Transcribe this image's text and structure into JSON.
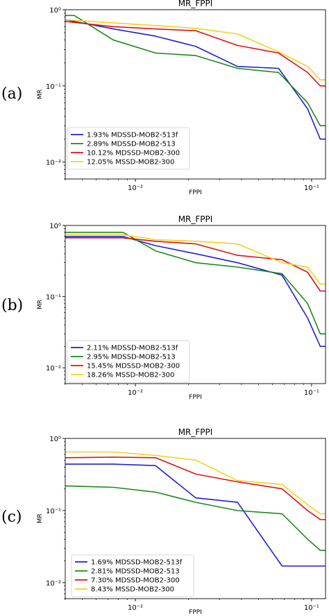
{
  "colors": {
    "mdssd_mob2_513f": "#1f1fd2",
    "mdssd_mob2_513": "#1a8a1a",
    "mdssd_mob2_300": "#e01010",
    "mssd_mob2_300": "#f2d21a"
  },
  "chart_data": [
    {
      "type": "line",
      "panel_label": "(a)",
      "title": "MR_FPPI",
      "xlabel": "FPPI",
      "ylabel": "MR",
      "xscale": "log",
      "yscale": "log",
      "xlim": [
        0.004,
        0.12
      ],
      "ylim": [
        0.006,
        1.0
      ],
      "xticks": [
        {
          "value": 0.01,
          "label": "10⁻²"
        },
        {
          "value": 0.1,
          "label": "10⁻¹"
        }
      ],
      "yticks": [
        {
          "value": 1,
          "label": "10⁰"
        },
        {
          "value": 0.1,
          "label": "10⁻¹"
        },
        {
          "value": 0.01,
          "label": "10⁻²"
        }
      ],
      "legend_position": "lower-left",
      "series": [
        {
          "name": "1.93% MDSSD-MOB2-513f",
          "color": "#1f1fd2",
          "x": [
            0.004,
            0.0075,
            0.013,
            0.022,
            0.038,
            0.065,
            0.095,
            0.112,
            0.12
          ],
          "y": [
            0.74,
            0.56,
            0.45,
            0.33,
            0.18,
            0.17,
            0.05,
            0.02,
            0.02
          ]
        },
        {
          "name": "2.89% MDSSD-MOB2-513",
          "color": "#1a8a1a",
          "x": [
            0.004,
            0.0045,
            0.0075,
            0.013,
            0.022,
            0.038,
            0.065,
            0.095,
            0.112,
            0.12
          ],
          "y": [
            0.84,
            0.84,
            0.4,
            0.27,
            0.25,
            0.17,
            0.15,
            0.06,
            0.03,
            0.03
          ]
        },
        {
          "name": "10.12% MDSSD-MOB2-300",
          "color": "#e01010",
          "x": [
            0.004,
            0.0075,
            0.013,
            0.022,
            0.038,
            0.065,
            0.095,
            0.112,
            0.12
          ],
          "y": [
            0.7,
            0.6,
            0.56,
            0.53,
            0.34,
            0.27,
            0.15,
            0.1,
            0.1
          ]
        },
        {
          "name": "12.05% MSSD-MOB2-300",
          "color": "#f2d21a",
          "x": [
            0.004,
            0.0075,
            0.013,
            0.022,
            0.038,
            0.065,
            0.095,
            0.112,
            0.12
          ],
          "y": [
            0.74,
            0.67,
            0.62,
            0.57,
            0.48,
            0.28,
            0.18,
            0.12,
            0.12
          ]
        }
      ]
    },
    {
      "type": "line",
      "panel_label": "(b)",
      "title": "MR_FPPI",
      "xlabel": "FPPI",
      "ylabel": "MR",
      "xscale": "log",
      "yscale": "log",
      "xlim": [
        0.004,
        0.12
      ],
      "ylim": [
        0.006,
        1.0
      ],
      "xticks": [
        {
          "value": 0.01,
          "label": "10⁻²"
        },
        {
          "value": 0.1,
          "label": "10⁻¹"
        }
      ],
      "yticks": [
        {
          "value": 1,
          "label": "10⁰"
        },
        {
          "value": 0.1,
          "label": "10⁻¹"
        },
        {
          "value": 0.01,
          "label": "10⁻²"
        }
      ],
      "legend_position": "lower-left",
      "series": [
        {
          "name": "2.11% MDSSD-MOB2-513f",
          "color": "#1f1fd2",
          "x": [
            0.004,
            0.0085,
            0.013,
            0.022,
            0.038,
            0.068,
            0.095,
            0.112,
            0.12
          ],
          "y": [
            0.7,
            0.7,
            0.52,
            0.4,
            0.3,
            0.2,
            0.05,
            0.02,
            0.02
          ]
        },
        {
          "name": "2.95% MDSSD-MOB2-513",
          "color": "#1a8a1a",
          "x": [
            0.004,
            0.0085,
            0.013,
            0.022,
            0.038,
            0.068,
            0.095,
            0.112,
            0.12
          ],
          "y": [
            0.8,
            0.8,
            0.44,
            0.3,
            0.26,
            0.21,
            0.08,
            0.03,
            0.03
          ]
        },
        {
          "name": "15.45% MDSSD-MOB2-300",
          "color": "#e01010",
          "x": [
            0.004,
            0.0085,
            0.013,
            0.022,
            0.038,
            0.068,
            0.095,
            0.112,
            0.12
          ],
          "y": [
            0.67,
            0.67,
            0.6,
            0.55,
            0.38,
            0.33,
            0.22,
            0.12,
            0.12
          ]
        },
        {
          "name": "18.26% MSSD-MOB2-300",
          "color": "#f2d21a",
          "x": [
            0.004,
            0.0085,
            0.013,
            0.022,
            0.038,
            0.068,
            0.095,
            0.112,
            0.12
          ],
          "y": [
            0.74,
            0.74,
            0.63,
            0.6,
            0.55,
            0.3,
            0.26,
            0.15,
            0.15
          ]
        }
      ]
    },
    {
      "type": "line",
      "panel_label": "(c)",
      "title": "MR_FPPI",
      "xlabel": "FPPI",
      "ylabel": "MR",
      "xscale": "log",
      "yscale": "log",
      "xlim": [
        0.004,
        0.12
      ],
      "ylim": [
        0.006,
        1.0
      ],
      "xticks": [
        {
          "value": 0.01,
          "label": "10⁻²"
        },
        {
          "value": 0.1,
          "label": "10⁻¹"
        }
      ],
      "yticks": [
        {
          "value": 1,
          "label": "10⁰"
        },
        {
          "value": 0.1,
          "label": "10⁻¹"
        },
        {
          "value": 0.01,
          "label": "10⁻²"
        }
      ],
      "legend_position": "lower-left",
      "series": [
        {
          "name": "1.69% MDSSD-MOB2-513f",
          "color": "#1f1fd2",
          "x": [
            0.004,
            0.0075,
            0.013,
            0.022,
            0.038,
            0.068,
            0.095,
            0.112,
            0.12
          ],
          "y": [
            0.44,
            0.44,
            0.42,
            0.15,
            0.13,
            0.017,
            0.017,
            0.017,
            0.017
          ]
        },
        {
          "name": "2.81% MDSSD-MOB2-513",
          "color": "#1a8a1a",
          "x": [
            0.004,
            0.0075,
            0.013,
            0.022,
            0.038,
            0.068,
            0.095,
            0.112,
            0.12
          ],
          "y": [
            0.22,
            0.21,
            0.18,
            0.13,
            0.1,
            0.09,
            0.04,
            0.028,
            0.028
          ]
        },
        {
          "name": "7.30% MDSSD-MOB2-300",
          "color": "#e01010",
          "x": [
            0.004,
            0.0075,
            0.013,
            0.022,
            0.038,
            0.068,
            0.095,
            0.112,
            0.12
          ],
          "y": [
            0.54,
            0.55,
            0.54,
            0.32,
            0.25,
            0.2,
            0.1,
            0.075,
            0.075
          ]
        },
        {
          "name": "8.43% MSSD-MOB2-300",
          "color": "#f2d21a",
          "x": [
            0.004,
            0.0075,
            0.013,
            0.022,
            0.038,
            0.068,
            0.095,
            0.112,
            0.12
          ],
          "y": [
            0.65,
            0.65,
            0.58,
            0.5,
            0.26,
            0.23,
            0.12,
            0.09,
            0.09
          ]
        }
      ]
    }
  ]
}
